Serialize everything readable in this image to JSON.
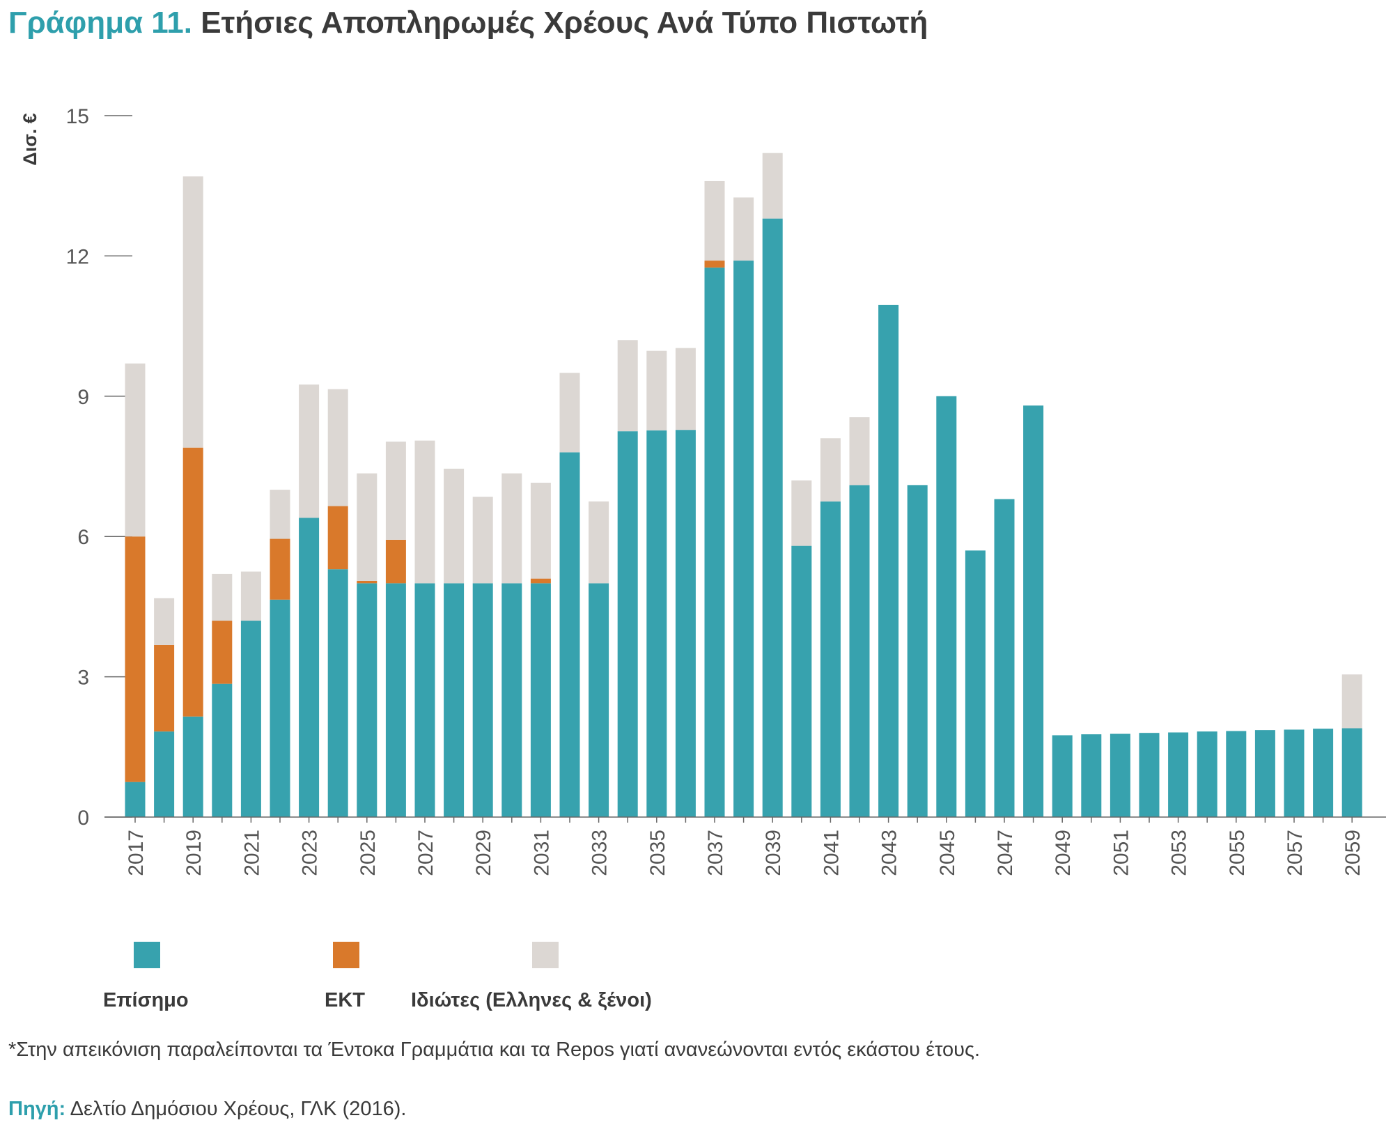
{
  "title": {
    "prefix": "Γράφημα 11.",
    "text": "Ετήσιες Αποπληρωμές Χρέους Ανά Τύπο Πιστωτή"
  },
  "colors": {
    "official": "#37a2ae",
    "ecb": "#d9792b",
    "private": "#dcd7d3",
    "title_accent": "#2e9fac",
    "axis": "#666666"
  },
  "chart_data": {
    "type": "bar",
    "stacked": true,
    "ylabel": "Δισ. €",
    "ylim": [
      0,
      15
    ],
    "yticks": [
      0,
      3,
      6,
      9,
      12,
      15
    ],
    "grid": false,
    "categories": [
      "2017",
      "2018",
      "2019",
      "2020",
      "2021",
      "2022",
      "2023",
      "2024",
      "2025",
      "2026",
      "2027",
      "2028",
      "2029",
      "2030",
      "2031",
      "2032",
      "2033",
      "2034",
      "2035",
      "2036",
      "2037",
      "2038",
      "2039",
      "2040",
      "2041",
      "2042",
      "2043",
      "2044",
      "2045",
      "2046",
      "2047",
      "2048",
      "2049",
      "2050",
      "2051",
      "2052",
      "2053",
      "2054",
      "2055",
      "2056",
      "2057",
      "2058",
      "2059"
    ],
    "xtick_labels": [
      "2017",
      "2019",
      "2021",
      "2023",
      "2025",
      "2027",
      "2029",
      "2031",
      "2033",
      "2035",
      "2037",
      "2039",
      "2041",
      "2043",
      "2045",
      "2047",
      "2049",
      "2051",
      "2053",
      "2055",
      "2057",
      "2059"
    ],
    "series": [
      {
        "name": "Επίσημο",
        "color": "#37a2ae",
        "values": [
          0.75,
          1.83,
          2.15,
          2.85,
          4.2,
          4.65,
          6.4,
          5.3,
          5.0,
          5.0,
          5.0,
          5.0,
          5.0,
          5.0,
          5.0,
          7.8,
          5.0,
          8.25,
          8.27,
          8.28,
          11.75,
          11.9,
          12.8,
          5.8,
          6.75,
          7.1,
          10.95,
          7.1,
          9.0,
          5.7,
          6.8,
          8.8,
          1.75,
          1.77,
          1.78,
          1.8,
          1.81,
          1.83,
          1.84,
          1.86,
          1.87,
          1.89,
          1.9
        ]
      },
      {
        "name": "ΕΚΤ",
        "color": "#d9792b",
        "values": [
          5.25,
          1.85,
          5.75,
          1.35,
          0,
          1.3,
          0,
          1.35,
          0.05,
          0.93,
          0,
          0,
          0,
          0,
          0.1,
          0,
          0,
          0,
          0,
          0,
          0.15,
          0,
          0,
          0,
          0,
          0,
          0,
          0,
          0,
          0,
          0,
          0,
          0,
          0,
          0,
          0,
          0,
          0,
          0,
          0,
          0,
          0,
          0
        ]
      },
      {
        "name": "Ιδιώτες (Έλληνες & ξένοι)",
        "color": "#dcd7d3",
        "values": [
          3.7,
          1.0,
          5.8,
          1.0,
          1.05,
          1.05,
          2.85,
          2.5,
          2.3,
          2.1,
          3.05,
          2.45,
          1.85,
          2.35,
          2.05,
          1.7,
          1.75,
          1.95,
          1.7,
          1.75,
          1.7,
          1.35,
          1.4,
          1.4,
          1.35,
          1.45,
          0,
          0,
          0,
          0,
          0,
          0,
          0,
          0,
          0,
          0,
          0,
          0,
          0,
          0,
          0,
          0,
          1.15
        ]
      }
    ]
  },
  "legend": [
    {
      "label": "Επίσημο",
      "color": "#37a2ae"
    },
    {
      "label": "ΕΚΤ",
      "color": "#d9792b"
    },
    {
      "label": "Ιδιώτες (Ελληνες & ξένοι)",
      "color": "#dcd7d3"
    }
  ],
  "note": "*Στην απεικόνιση παραλείπονται τα Έντοκα Γραμμάτια και τα Repos γιατί ανανεώνονται εντός εκάστου έτους.",
  "source": {
    "label": "Πηγή:",
    "text": "Δελτίο Δημόσιου Χρέους, ΓΛΚ (2016)."
  }
}
